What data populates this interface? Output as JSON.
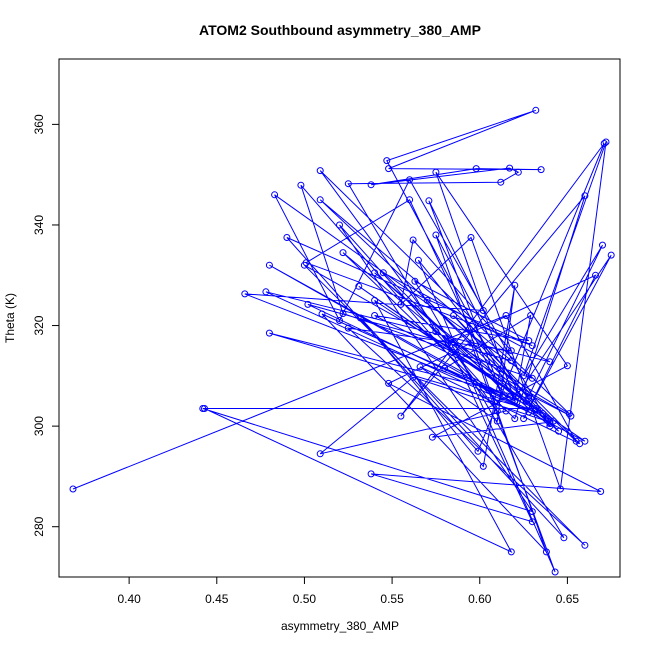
{
  "chart_data": {
    "type": "line",
    "title": "ATOM2 Southbound asymmetry_380_AMP",
    "xlabel": "asymmetry_380_AMP",
    "ylabel": "Theta (K)",
    "xlim": [
      0.36,
      0.68
    ],
    "ylim": [
      270,
      373
    ],
    "xticks": [
      0.4,
      0.45,
      0.5,
      0.55,
      0.6,
      0.65
    ],
    "xtick_labels": [
      "0.40",
      "0.45",
      "0.50",
      "0.55",
      "0.60",
      "0.65"
    ],
    "yticks": [
      280,
      300,
      320,
      340,
      360
    ],
    "ytick_labels": [
      "280",
      "300",
      "320",
      "340",
      "360"
    ],
    "color": "#0000ff",
    "grid": false,
    "series": [
      {
        "points": [
          [
            0.368,
            287.5
          ],
          [
            0.615,
            322.0
          ],
          [
            0.655,
            297.0
          ],
          [
            0.57,
            325.0
          ],
          [
            0.64,
            300.5
          ],
          [
            0.48,
            332.0
          ],
          [
            0.62,
            305.0
          ],
          [
            0.547,
            352.8
          ],
          [
            0.632,
            362.8
          ],
          [
            0.548,
            351.2
          ],
          [
            0.635,
            351.0
          ],
          [
            0.598,
            351.2
          ],
          [
            0.538,
            348.0
          ],
          [
            0.617,
            351.3
          ],
          [
            0.622,
            350.5
          ],
          [
            0.612,
            348.5
          ],
          [
            0.525,
            348.2
          ],
          [
            0.575,
            318.8
          ],
          [
            0.651,
            302.5
          ],
          [
            0.509,
            350.8
          ],
          [
            0.61,
            303.0
          ],
          [
            0.498,
            347.9
          ],
          [
            0.522,
            322.4
          ],
          [
            0.63,
            309.5
          ],
          [
            0.483,
            346.0
          ],
          [
            0.52,
            321.0
          ],
          [
            0.56,
            349.0
          ],
          [
            0.64,
            300.0
          ],
          [
            0.522,
            334.5
          ],
          [
            0.62,
            301.5
          ],
          [
            0.66,
            345.8
          ],
          [
            0.555,
            302.0
          ],
          [
            0.671,
            356.2
          ],
          [
            0.599,
            295.0
          ],
          [
            0.49,
            337.5
          ],
          [
            0.63,
            316.0
          ],
          [
            0.501,
            332.5
          ],
          [
            0.56,
            345.0
          ],
          [
            0.613,
            306.0
          ],
          [
            0.571,
            344.8
          ],
          [
            0.602,
            323.0
          ],
          [
            0.466,
            326.3
          ],
          [
            0.617,
            305.8
          ],
          [
            0.545,
            330.5
          ],
          [
            0.64,
            312.8
          ],
          [
            0.478,
            326.7
          ],
          [
            0.628,
            302.8
          ],
          [
            0.575,
            338.0
          ],
          [
            0.638,
            275.0
          ],
          [
            0.51,
            322.3
          ],
          [
            0.632,
            303.5
          ],
          [
            0.442,
            303.5
          ],
          [
            0.63,
            283.0
          ],
          [
            0.52,
            340.0
          ],
          [
            0.615,
            303.0
          ],
          [
            0.509,
            294.5
          ],
          [
            0.562,
            309.7
          ],
          [
            0.64,
            300.8
          ],
          [
            0.573,
            297.8
          ],
          [
            0.65,
            312.0
          ],
          [
            0.575,
            350.5
          ],
          [
            0.62,
            305.0
          ],
          [
            0.629,
            322.0
          ],
          [
            0.58,
            311.5
          ],
          [
            0.66,
            297.0
          ],
          [
            0.531,
            327.8
          ],
          [
            0.642,
            301.0
          ],
          [
            0.502,
            324.2
          ],
          [
            0.618,
            313.0
          ],
          [
            0.509,
            345.0
          ],
          [
            0.628,
            306.0
          ],
          [
            0.67,
            336.0
          ],
          [
            0.625,
            310.0
          ],
          [
            0.672,
            356.5
          ],
          [
            0.646,
            287.5
          ],
          [
            0.595,
            337.5
          ],
          [
            0.555,
            324.2
          ],
          [
            0.562,
            337.0
          ],
          [
            0.618,
            315.0
          ],
          [
            0.525,
            319.5
          ],
          [
            0.66,
            276.3
          ],
          [
            0.5,
            332.0
          ],
          [
            0.652,
            302.0
          ],
          [
            0.54,
            322.0
          ],
          [
            0.628,
            317.0
          ],
          [
            0.563,
            328.8
          ],
          [
            0.648,
            277.8
          ],
          [
            0.532,
            321.5
          ],
          [
            0.602,
            292.0
          ],
          [
            0.62,
            328.0
          ],
          [
            0.61,
            301.0
          ],
          [
            0.566,
            311.8
          ],
          [
            0.657,
            296.5
          ],
          [
            0.585,
            322.0
          ],
          [
            0.645,
            299.0
          ],
          [
            0.54,
            330.5
          ],
          [
            0.636,
            302.5
          ],
          [
            0.48,
            318.5
          ],
          [
            0.628,
            305.5
          ],
          [
            0.565,
            333.0
          ],
          [
            0.643,
            271.0
          ],
          [
            0.595,
            316.5
          ],
          [
            0.548,
            308.5
          ],
          [
            0.669,
            287.0
          ],
          [
            0.538,
            290.5
          ],
          [
            0.63,
            281.0
          ],
          [
            0.582,
            316.5
          ],
          [
            0.666,
            330.0
          ],
          [
            0.625,
            301.5
          ],
          [
            0.675,
            334.0
          ],
          [
            0.621,
            306.0
          ],
          [
            0.54,
            325.0
          ],
          [
            0.618,
            275.0
          ],
          [
            0.443,
            303.5
          ]
        ]
      }
    ]
  }
}
